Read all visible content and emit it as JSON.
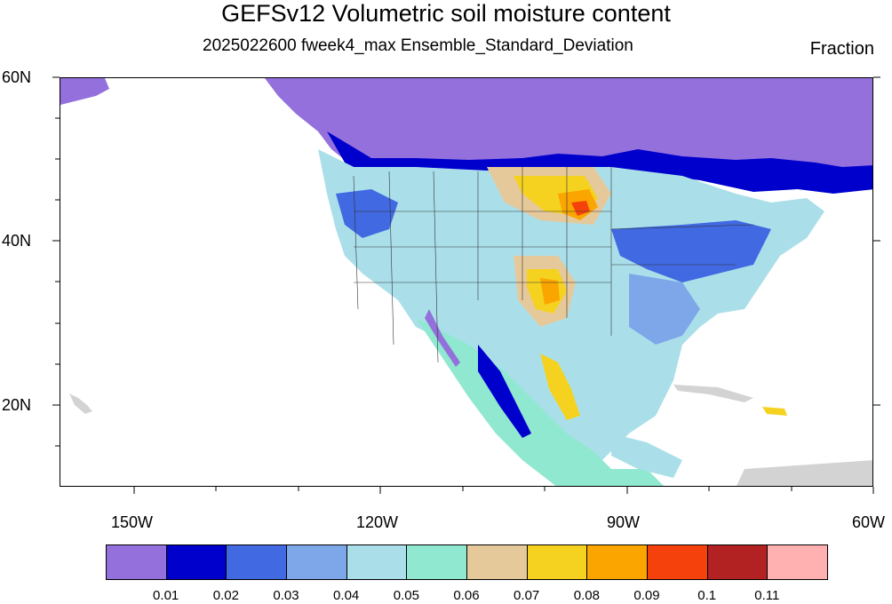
{
  "title": "GEFSv12 Volumetric soil moisture content",
  "subtitle": "2025022600 fweek4_max Ensemble_Standard_Deviation",
  "units": "Fraction",
  "axes": {
    "lat_labels": [
      "60N",
      "40N",
      "20N"
    ],
    "lon_labels": [
      "150W",
      "120W",
      "90W",
      "60W"
    ]
  },
  "colorbar": {
    "colors": [
      "#9370db",
      "#0000cd",
      "#4169e1",
      "#7ea7ea",
      "#aadfea",
      "#90e8d0",
      "#e6c99a",
      "#f5d21f",
      "#fba500",
      "#f5420c",
      "#b22222",
      "#ffb0b0"
    ],
    "labels": [
      "0.01",
      "0.02",
      "0.03",
      "0.04",
      "0.05",
      "0.06",
      "0.07",
      "0.08",
      "0.09",
      "0.1",
      "0.11"
    ]
  },
  "map": {
    "region": "North America",
    "lat_range": [
      10,
      60
    ],
    "lon_range": [
      -160,
      -60
    ]
  }
}
